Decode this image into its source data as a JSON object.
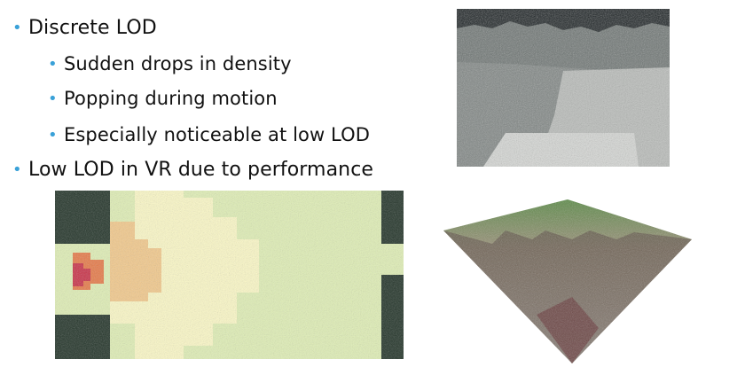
{
  "bullets": [
    {
      "level": 1,
      "text": "Discrete LOD"
    },
    {
      "level": 2,
      "text": "Sudden drops in density"
    },
    {
      "level": 2,
      "text": "Popping during motion"
    },
    {
      "level": 2,
      "text": "Especially noticeable at low LOD"
    },
    {
      "level": 1,
      "text": "Low LOD in VR due to performance"
    }
  ],
  "colors": {
    "bullet": "#3aa1d8",
    "text": "#111111",
    "heat_low": "#dfeeb5",
    "heat_mid": "#fbf8c6",
    "heat_warm": "#f2c98c",
    "heat_hot": "#e67b4a",
    "heat_max": "#c9344a",
    "dark_region": "#24352a"
  },
  "icons": [
    "bullet-dot-icon"
  ]
}
